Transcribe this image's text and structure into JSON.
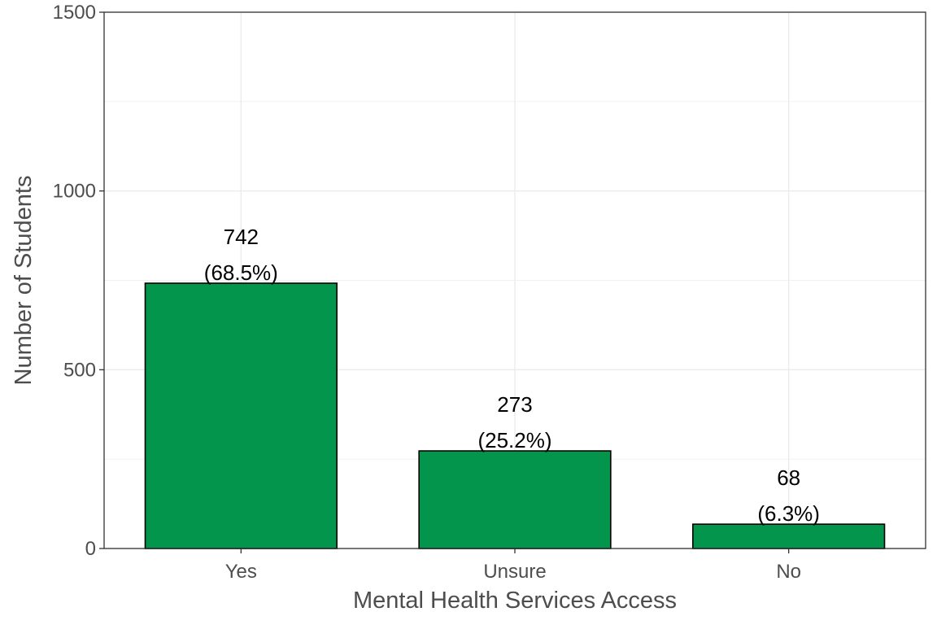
{
  "chart_data": {
    "type": "bar",
    "categories": [
      "Yes",
      "Unsure",
      "No"
    ],
    "values": [
      742,
      273,
      68
    ],
    "labels": [
      {
        "count": "742",
        "percent": "(68.5%)"
      },
      {
        "count": "273",
        "percent": "(25.2%)"
      },
      {
        "count": "68",
        "percent": "(6.3%)"
      }
    ],
    "title": "",
    "xlabel": "Mental Health Services Access",
    "ylabel": "Number of Students",
    "ylim": [
      0,
      1500
    ],
    "yticks": [
      0,
      500,
      1000,
      1500
    ],
    "ytick_labels": [
      "0",
      "500",
      "1000",
      "1500"
    ],
    "grid": true,
    "legend": "none",
    "colors": {
      "bar_fill": "#03954b",
      "bar_stroke": "#000000",
      "grid": "#ebebeb",
      "panel_border": "#333333"
    }
  }
}
